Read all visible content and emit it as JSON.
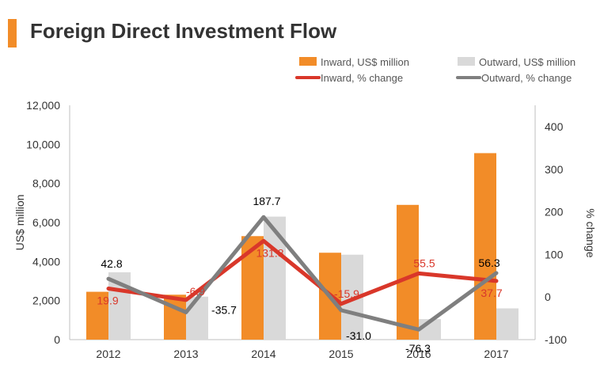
{
  "title": "Foreign Direct Investment Flow",
  "colors": {
    "accent": "#f28c28",
    "inward_bar": "#f28c28",
    "outward_bar": "#d9d9d9",
    "inward_line": "#d9372a",
    "outward_line": "#7f7f7f",
    "inward_label": "#d9372a",
    "outward_label": "#000000"
  },
  "chart_data": {
    "type": "bar",
    "categories": [
      "2012",
      "2013",
      "2014",
      "2015",
      "2016",
      "2017"
    ],
    "series": [
      {
        "name": "Inward, US$ million",
        "type": "bar",
        "axis": "left",
        "values": [
          2450,
          2300,
          5300,
          4450,
          6900,
          9550
        ]
      },
      {
        "name": "Outward, US$ million",
        "type": "bar",
        "axis": "left",
        "values": [
          3450,
          2200,
          6300,
          4350,
          1050,
          1600
        ]
      },
      {
        "name": "Inward, % change",
        "type": "line",
        "axis": "right",
        "values": [
          19.9,
          -6.9,
          131.8,
          -15.9,
          55.5,
          37.7
        ],
        "labels": [
          "19.9",
          "-6.9",
          "131.8",
          "-15.9",
          "55.5",
          "37.7"
        ]
      },
      {
        "name": "Outward, % change",
        "type": "line",
        "axis": "right",
        "values": [
          42.8,
          -35.7,
          187.7,
          -31.0,
          -76.3,
          56.3
        ],
        "labels": [
          "42.8",
          "-35.7",
          "187.7",
          "-31.0",
          "-76.3",
          "56.3"
        ]
      }
    ],
    "ylabel": "US$ million",
    "ylim": [
      0,
      12000
    ],
    "yticks": [
      "0",
      "2,000",
      "4,000",
      "6,000",
      "8,000",
      "10,000",
      "12,000"
    ],
    "y2label": "% change",
    "y2lim": [
      -100,
      400
    ],
    "y2ticks": [
      "-100",
      "0",
      "100",
      "200",
      "300",
      "400"
    ],
    "grid": false,
    "legend_position": "top-right"
  }
}
